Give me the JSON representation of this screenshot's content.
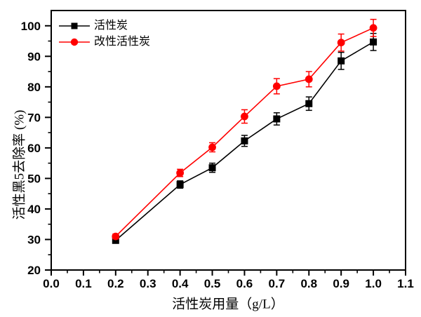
{
  "chart_data": {
    "type": "line",
    "title": "",
    "xlabel": "活性炭用量（g/L）",
    "ylabel": "活性黑5去除率 (%)",
    "xlim": [
      0.0,
      1.1
    ],
    "ylim": [
      20,
      105
    ],
    "grid": false,
    "legend_position": "top-left",
    "x_ticks": {
      "values": [
        0.0,
        0.1,
        0.2,
        0.3,
        0.4,
        0.5,
        0.6,
        0.7,
        0.8,
        0.9,
        1.0,
        1.1
      ],
      "labels": [
        "0.0",
        "0.1",
        "0.2",
        "0.3",
        "0.4",
        "0.5",
        "0.6",
        "0.7",
        "0.8",
        "0.9",
        "1.0",
        "1.1"
      ]
    },
    "x_minor_step": 0.05,
    "y_ticks": {
      "values": [
        20,
        30,
        40,
        50,
        60,
        70,
        80,
        90,
        100
      ],
      "labels": [
        "20",
        "30",
        "40",
        "50",
        "60",
        "70",
        "80",
        "90",
        "100"
      ]
    },
    "y_minor_step": 5,
    "x": [
      0.2,
      0.4,
      0.5,
      0.6,
      0.7,
      0.8,
      0.9,
      1.0
    ],
    "series": [
      {
        "name": "活性炭",
        "color": "#000000",
        "marker": "square",
        "values": [
          29.7,
          48.0,
          53.5,
          62.3,
          69.5,
          74.5,
          88.5,
          94.7
        ],
        "errors": [
          0.8,
          1.2,
          1.5,
          1.8,
          2.0,
          2.2,
          2.8,
          2.8
        ]
      },
      {
        "name": "改性活性炭",
        "color": "#ff0000",
        "marker": "circle",
        "values": [
          31.0,
          51.8,
          60.2,
          70.3,
          80.2,
          82.5,
          94.5,
          99.3
        ],
        "errors": [
          0.8,
          1.2,
          1.5,
          2.2,
          2.5,
          2.5,
          2.8,
          2.8
        ]
      }
    ]
  }
}
